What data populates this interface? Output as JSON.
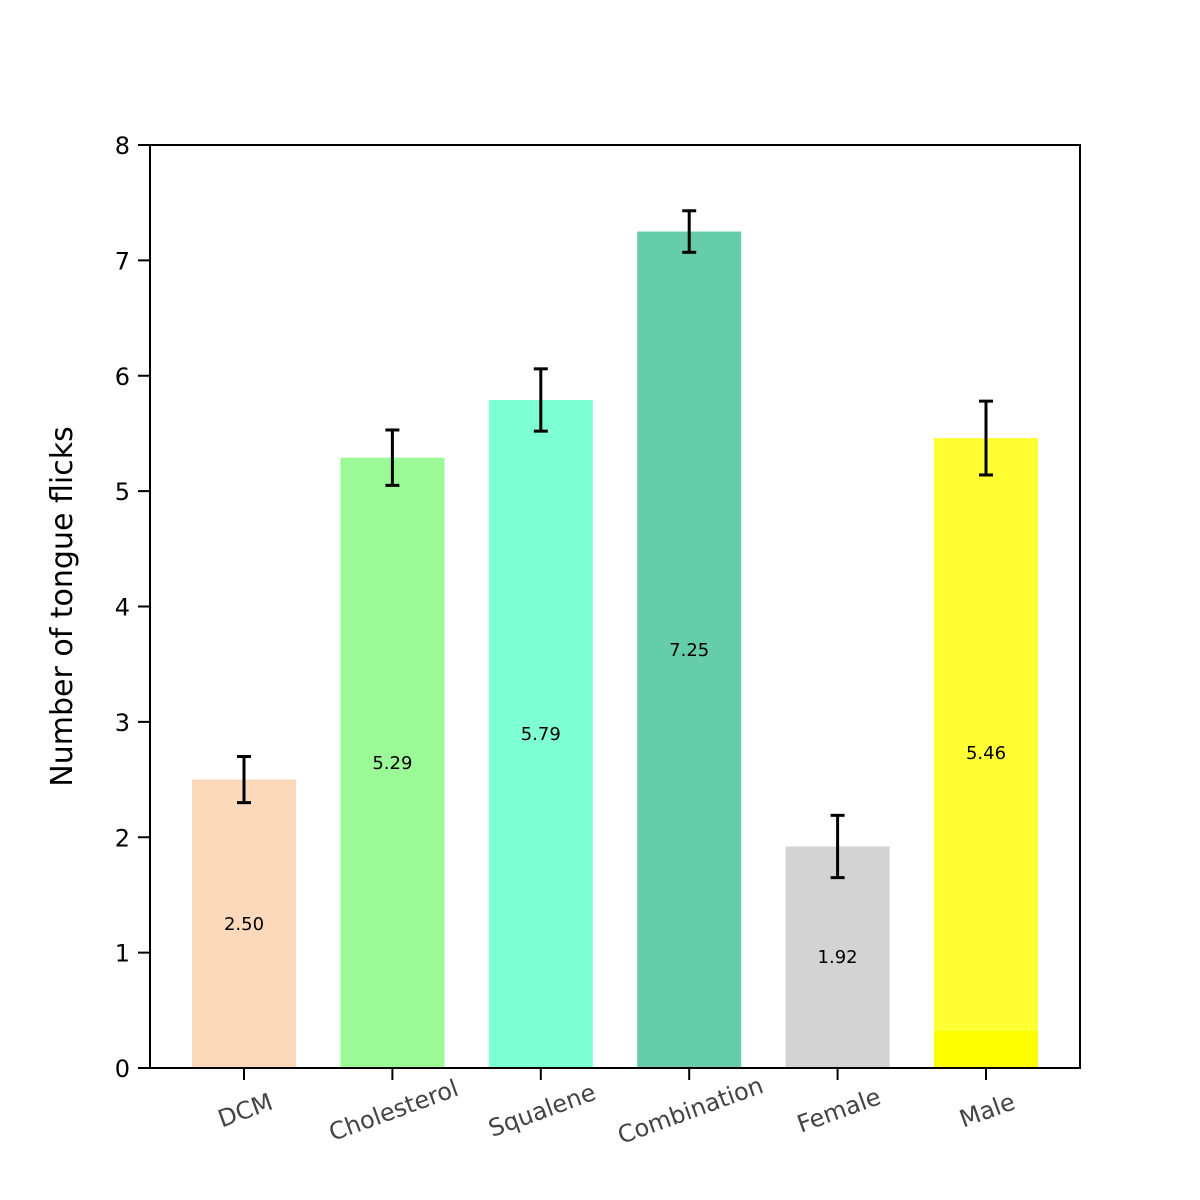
{
  "chart_data": {
    "type": "bar",
    "title": "",
    "xlabel": "",
    "ylabel": "Number of tongue flicks",
    "ylim": [
      0,
      8
    ],
    "yticks": [
      0,
      1,
      2,
      3,
      4,
      5,
      6,
      7,
      8
    ],
    "grid": false,
    "categories": [
      "DCM",
      "Cholesterol",
      "Squalene",
      "Combination",
      "Female",
      "Male"
    ],
    "values": [
      2.5,
      5.29,
      5.79,
      7.25,
      1.92,
      5.46
    ],
    "value_labels": [
      "2.50",
      "5.29",
      "5.79",
      "7.25",
      "1.92",
      "5.46"
    ],
    "errors": [
      0.2,
      0.24,
      0.27,
      0.18,
      0.27,
      0.32
    ],
    "colors": [
      "#fcd9bb",
      "#9cf997",
      "#7fffd4",
      "#66cdaa",
      "#d3d3d3",
      "#ffff33"
    ],
    "male_base_band": {
      "value": 0.32,
      "color": "#ffff00"
    },
    "errorbar_color": "#000000",
    "category_label_color": "#444444"
  }
}
